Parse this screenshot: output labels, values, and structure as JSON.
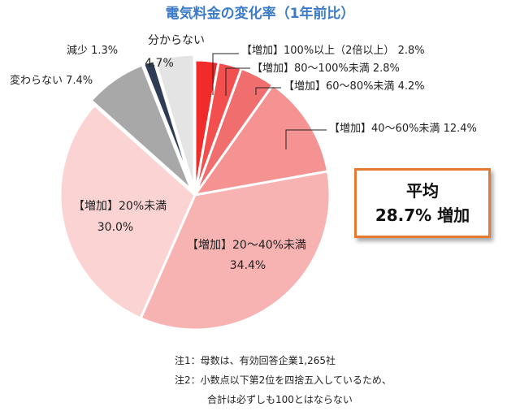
{
  "chart_data": {
    "type": "pie",
    "title": "電気料金の変化率（1年前比）",
    "slices": [
      {
        "label": "【増加】100%以上（2倍以上）",
        "value": 2.8,
        "value_text": "2.8%",
        "color": "#f12a2a"
      },
      {
        "label": "【増加】80～100%未満",
        "value": 2.8,
        "value_text": "2.8%",
        "color": "#f34f4f"
      },
      {
        "label": "【増加】60～80%未満",
        "value": 4.2,
        "value_text": "4.2%",
        "color": "#f06e6e"
      },
      {
        "label": "【増加】40～60%未満",
        "value": 12.4,
        "value_text": "12.4%",
        "color": "#f59292"
      },
      {
        "label": "【増加】20～40%未満",
        "value": 34.4,
        "value_text": "34.4%",
        "color": "#f7b2b2"
      },
      {
        "label": "【増加】20%未満",
        "value": 30.0,
        "value_text": "30.0%",
        "color": "#fbd3d3"
      },
      {
        "label": "変わらない",
        "value": 7.4,
        "value_text": "7.4%",
        "color": "#a8a8a8"
      },
      {
        "label": "減少",
        "value": 1.3,
        "value_text": "1.3%",
        "color": "#2e3d55"
      },
      {
        "label": "分からない",
        "value": 4.7,
        "value_text": "4.7%",
        "color": "#e4e4e4"
      }
    ]
  },
  "average": {
    "label": "平均",
    "value": "28.7% 増加"
  },
  "notes": [
    "注1：母数は、有効回答企業1,265社",
    "注2：小数点以下第2位を四捨五入しているため、",
    "合計は必ずしも100とはならない"
  ]
}
